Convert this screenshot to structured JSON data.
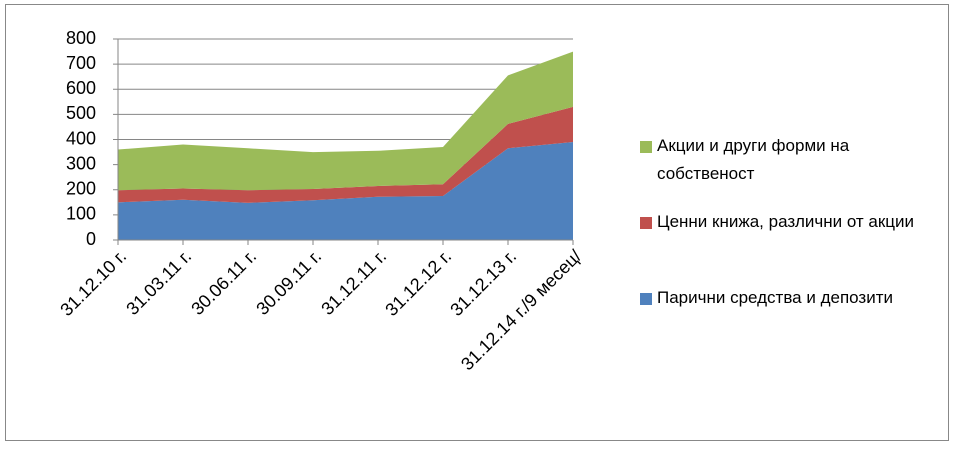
{
  "chart_data": {
    "type": "stacked_area",
    "categories": [
      "31.12.10 г.",
      "31.03.11 г.",
      "30.06.11 г.",
      "30.09.11 г.",
      "31.12.11 г.",
      "31.12.12 г.",
      "31.12.13 г.",
      "31.12.14 г./9 месец/"
    ],
    "series": [
      {
        "name": "Парични средства и депозити",
        "color": "#4f81bd",
        "values": [
          150,
          160,
          148,
          158,
          172,
          175,
          365,
          390
        ]
      },
      {
        "name": "Ценни книжа, различни от акции",
        "color": "#c0504d",
        "values": [
          48,
          45,
          50,
          45,
          43,
          47,
          97,
          140
        ]
      },
      {
        "name": "Акции и други форми на собственост",
        "color": "#9bbb59",
        "values": [
          162,
          175,
          167,
          147,
          140,
          148,
          193,
          220
        ]
      }
    ],
    "ylim": [
      0,
      800
    ],
    "yticks": [
      0,
      100,
      200,
      300,
      400,
      500,
      600,
      700,
      800
    ],
    "grid": true
  }
}
